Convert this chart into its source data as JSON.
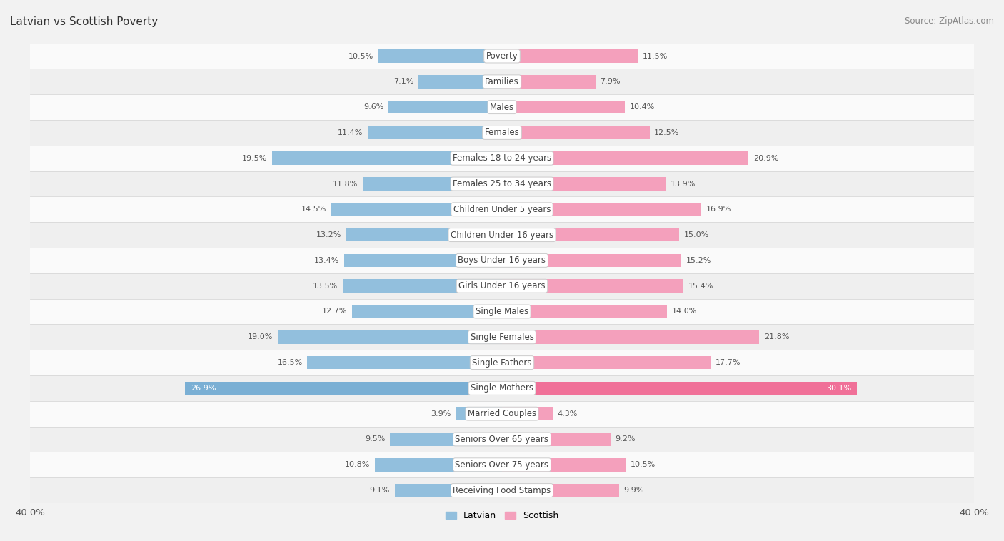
{
  "title": "Latvian vs Scottish Poverty",
  "source": "Source: ZipAtlas.com",
  "categories": [
    "Poverty",
    "Families",
    "Males",
    "Females",
    "Females 18 to 24 years",
    "Females 25 to 34 years",
    "Children Under 5 years",
    "Children Under 16 years",
    "Boys Under 16 years",
    "Girls Under 16 years",
    "Single Males",
    "Single Females",
    "Single Fathers",
    "Single Mothers",
    "Married Couples",
    "Seniors Over 65 years",
    "Seniors Over 75 years",
    "Receiving Food Stamps"
  ],
  "latvian": [
    10.5,
    7.1,
    9.6,
    11.4,
    19.5,
    11.8,
    14.5,
    13.2,
    13.4,
    13.5,
    12.7,
    19.0,
    16.5,
    26.9,
    3.9,
    9.5,
    10.8,
    9.1
  ],
  "scottish": [
    11.5,
    7.9,
    10.4,
    12.5,
    20.9,
    13.9,
    16.9,
    15.0,
    15.2,
    15.4,
    14.0,
    21.8,
    17.7,
    30.1,
    4.3,
    9.2,
    10.5,
    9.9
  ],
  "latvian_color": "#92bfdd",
  "scottish_color": "#f4a0bc",
  "latvian_highlight_color": "#7aafd4",
  "scottish_highlight_color": "#f07098",
  "bar_height": 0.52,
  "bg_color": "#f2f2f2",
  "row_bg_light": "#fafafa",
  "row_bg_dark": "#efefef",
  "axis_limit": 40.0,
  "label_fontsize": 8.5,
  "value_fontsize": 8.0,
  "title_fontsize": 11,
  "source_fontsize": 8.5,
  "legend_fontsize": 9
}
